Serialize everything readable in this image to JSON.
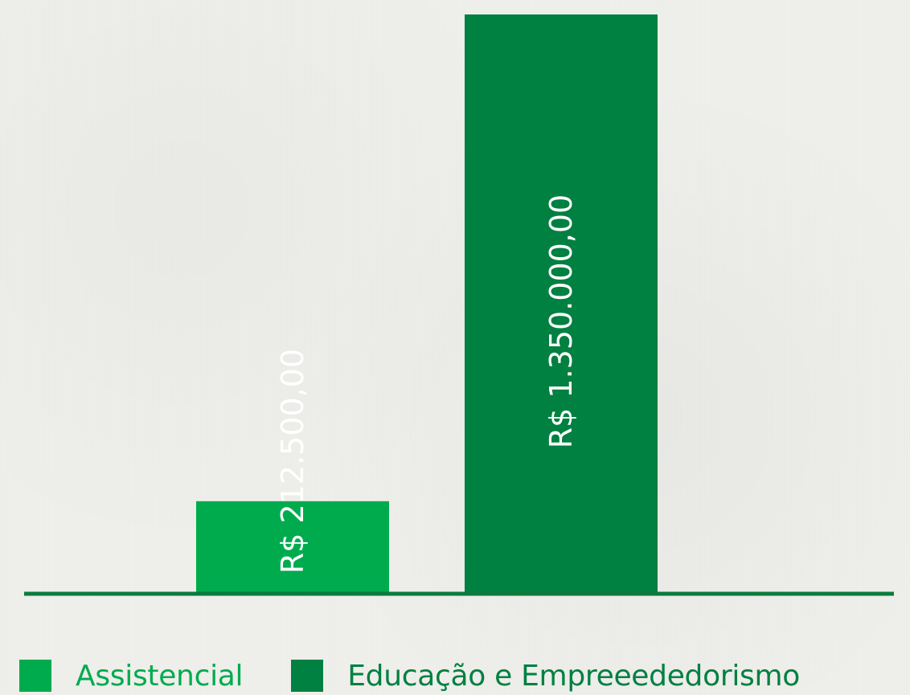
{
  "chart_data": {
    "type": "bar",
    "categories": [
      "Assistencial",
      "Educação e Empreeededorismo"
    ],
    "values": [
      212500,
      1350000
    ],
    "value_labels": [
      "R$ 212.500,00",
      "R$ 1.350.000,00"
    ],
    "legend": [
      "Assistencial",
      "Educação e Empreeededorismo"
    ],
    "colors": [
      "#00ab4e",
      "#008041"
    ],
    "axis_color": "#0c7a3c",
    "legend_position": "bottom-left",
    "grid": false,
    "ylim": [
      0,
      1400000
    ]
  }
}
